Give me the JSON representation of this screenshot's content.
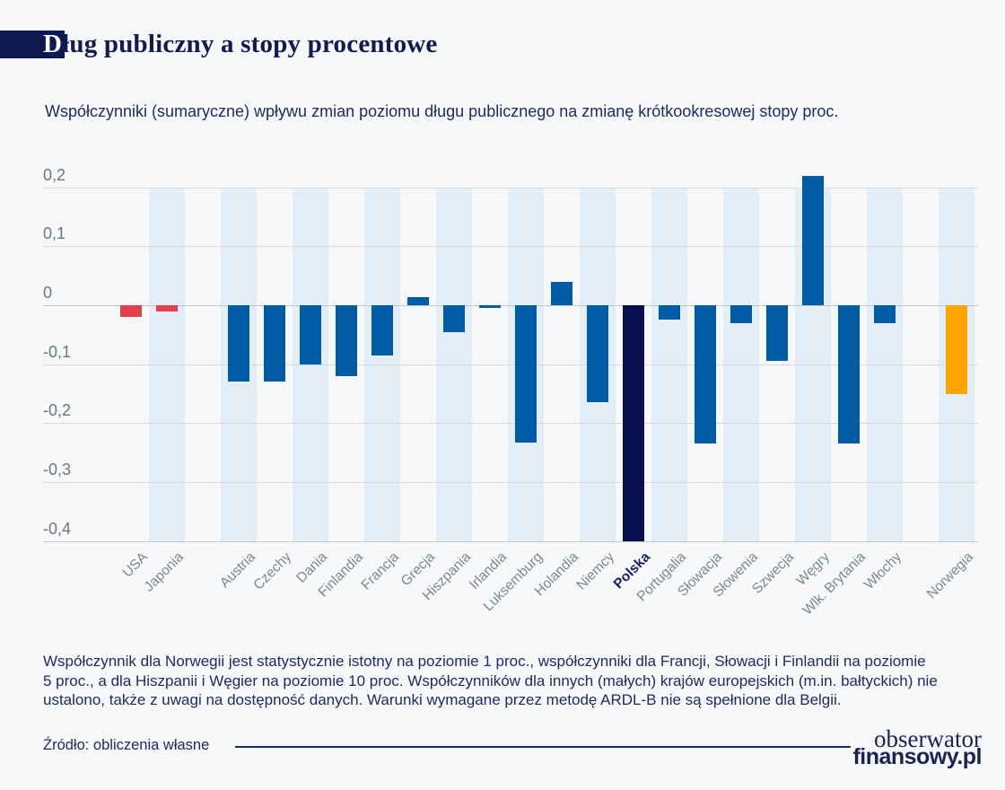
{
  "header": {
    "title_first_letter": "D",
    "title_rest": "ług publiczny a stopy procentowe"
  },
  "subtitle": "Współczynniki (sumaryczne) wpływu zmian poziomu długu publicznego na zmianę krótkookresowej stopy proc.",
  "chart_data": {
    "type": "bar",
    "title": "Współczynniki (sumaryczne) wpływu zmian poziomu długu publicznego na zmianę krótkookresowej stopy proc.",
    "ylim": [
      -0.41,
      0.22
    ],
    "grid": true,
    "legend": "none",
    "y_ticks": [
      "0,2",
      "0,1",
      "0",
      "-0,1",
      "-0,2",
      "-0,3",
      "-0,4"
    ],
    "palette": {
      "red": "#e2404e",
      "blue": "#005ca6",
      "navy": "#06104e",
      "orange": "#ffa502"
    },
    "stripe_color": "#e3eef6",
    "bars": [
      {
        "label": "USA",
        "value": -0.02,
        "color": "red"
      },
      {
        "label": "Japonia",
        "value": -0.01,
        "color": "red"
      },
      {
        "label": "Austria",
        "value": -0.13,
        "color": "blue",
        "gap_before": true
      },
      {
        "label": "Czechy",
        "value": -0.13,
        "color": "blue"
      },
      {
        "label": "Dania",
        "value": -0.1,
        "color": "blue"
      },
      {
        "label": "Finlandia",
        "value": -0.12,
        "color": "blue"
      },
      {
        "label": "Francja",
        "value": -0.085,
        "color": "blue"
      },
      {
        "label": "Grecja",
        "value": 0.013,
        "color": "blue"
      },
      {
        "label": "Hiszpania",
        "value": -0.045,
        "color": "blue"
      },
      {
        "label": "Irlandia",
        "value": -0.005,
        "color": "blue"
      },
      {
        "label": "Luksemburg",
        "value": -0.233,
        "color": "blue"
      },
      {
        "label": "Holandia",
        "value": 0.04,
        "color": "blue"
      },
      {
        "label": "Niemcy",
        "value": -0.165,
        "color": "blue"
      },
      {
        "label": "Polska",
        "value": -0.4,
        "color": "navy",
        "highlight": true
      },
      {
        "label": "Portugalia",
        "value": -0.025,
        "color": "blue"
      },
      {
        "label": "Słowacja",
        "value": -0.235,
        "color": "blue"
      },
      {
        "label": "Słowenia",
        "value": -0.03,
        "color": "blue"
      },
      {
        "label": "Szwecja",
        "value": -0.095,
        "color": "blue"
      },
      {
        "label": "Węgry",
        "value": 0.22,
        "color": "blue"
      },
      {
        "label": "Wlk. Brytania",
        "value": -0.235,
        "color": "blue"
      },
      {
        "label": "Włochy",
        "value": -0.03,
        "color": "blue"
      },
      {
        "label": "Norwegia",
        "value": -0.15,
        "color": "orange",
        "gap_before": true
      }
    ]
  },
  "footnote": {
    "lines": [
      "Współczynnik dla Norwegii jest statystycznie istotny na poziomie 1 proc., współczynniki dla Francji, Słowacji i Finlandii na poziomie",
      "5 proc., a dla Hiszpanii i Węgier na poziomie 10 proc.  Współczynników dla innych (małych) krajów europejskich (m.in. bałtyckich) nie",
      "ustalono, także z uwagi na dostępność danych. Warunki wymagane przez metodę ARDL-B nie są spełnione dla Belgii."
    ]
  },
  "source": "Źródło: obliczenia własne",
  "logo": {
    "line1": "obserwator",
    "line2": "finansowy.pl"
  },
  "colors": {
    "background": "#f7f8fa",
    "accent_navy": "#0d1a52",
    "text_navy": "#202a63",
    "axis_gray": "#6e767d"
  }
}
